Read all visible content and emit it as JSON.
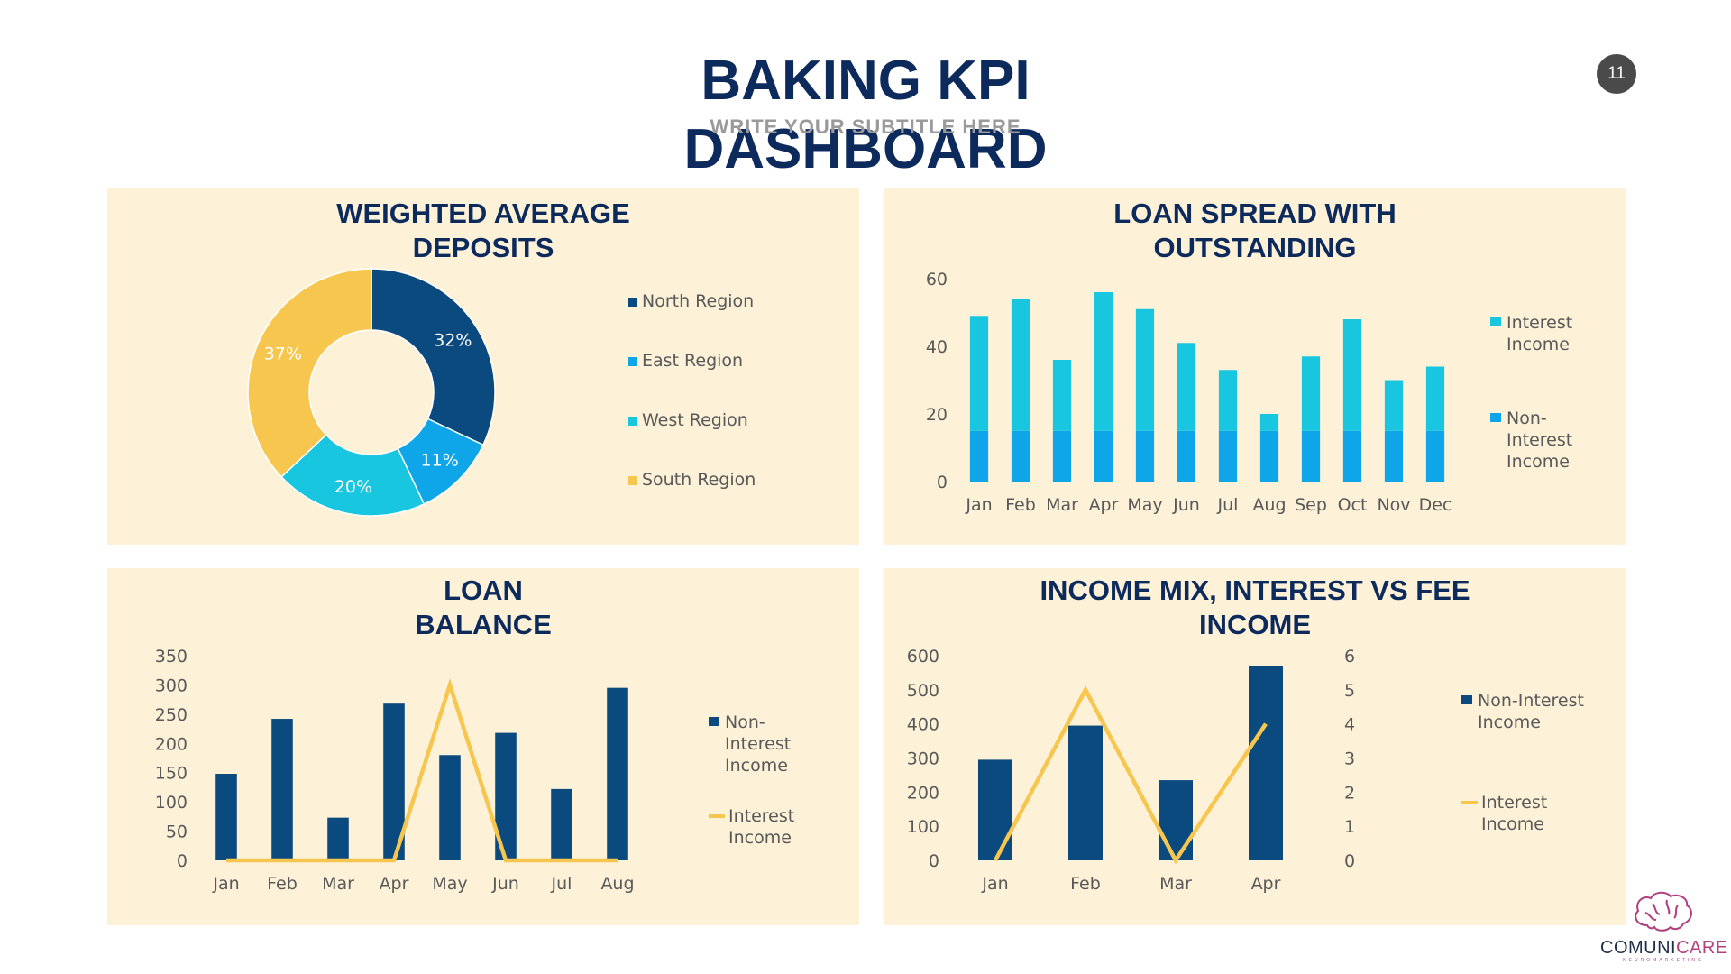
{
  "header": {
    "title_line1": "BAKING KPI",
    "title_line2": "DASHBOARD",
    "subtitle": "WRITE YOUR SUBTITLE HERE",
    "page_number": "11"
  },
  "logo": {
    "word_part1": "COMUNI",
    "word_part2": "CARE",
    "tagline": "NEUROMARKETING",
    "icon": "brain-icon"
  },
  "colors": {
    "navy": "#0d2a5c",
    "panel_bg": "#fdf1d8",
    "dark_blue": "#0b4a7e",
    "blue": "#0ea5e9",
    "cyan": "#19c6df",
    "yellow": "#f7c64e"
  },
  "chart_data": [
    {
      "id": "deposits",
      "type": "pie",
      "title_lines": [
        "WEIGHTED AVERAGE",
        "DEPOSITS"
      ],
      "donut": true,
      "labels": [
        "North Region",
        "East Region",
        "West Region",
        "South Region"
      ],
      "values": [
        32,
        11,
        20,
        37
      ],
      "value_labels": [
        "32%",
        "11%",
        "20%",
        "37%"
      ],
      "colors": [
        "#0b4a7e",
        "#0ea5e9",
        "#19c6df",
        "#f7c64e"
      ],
      "legend": "right"
    },
    {
      "id": "loan_spread",
      "type": "bar",
      "stacked": true,
      "title_lines": [
        "LOAN SPREAD WITH",
        "OUTSTANDING"
      ],
      "categories": [
        "Jan",
        "Feb",
        "Mar",
        "Apr",
        "May",
        "Jun",
        "Jul",
        "Aug",
        "Sep",
        "Oct",
        "Nov",
        "Dec"
      ],
      "series": [
        {
          "name": "Non-Interest Income",
          "legend_lines": [
            "Non-",
            "Interest",
            "Income"
          ],
          "color": "#0ea5e9",
          "values": [
            15,
            15,
            15,
            15,
            15,
            15,
            15,
            15,
            15,
            15,
            15,
            15
          ]
        },
        {
          "name": "Interest Income",
          "legend_lines": [
            "Interest",
            "Income"
          ],
          "color": "#19c6df",
          "values": [
            34,
            39,
            21,
            41,
            36,
            26,
            18,
            5,
            22,
            33,
            15,
            19
          ]
        }
      ],
      "ylim": [
        0,
        60
      ],
      "yticks": [
        "0",
        "20",
        "40",
        "60"
      ],
      "legend": "right"
    },
    {
      "id": "loan_balance",
      "type": "bar",
      "title_lines": [
        "LOAN",
        "BALANCE"
      ],
      "categories": [
        "Jan",
        "Feb",
        "Mar",
        "Apr",
        "May",
        "Jun",
        "Jul",
        "Aug"
      ],
      "series": [
        {
          "name": "Non-Interest Income",
          "kind": "bar",
          "legend_lines": [
            "Non-",
            "Interest",
            "Income"
          ],
          "color": "#0b4a7e",
          "values": [
            148,
            242,
            73,
            268,
            180,
            218,
            122,
            295
          ]
        },
        {
          "name": "Interest Income",
          "kind": "line",
          "legend_lines": [
            "Interest",
            "Income"
          ],
          "color": "#f7c64e",
          "values": [
            0,
            0,
            0,
            0,
            300,
            0,
            0,
            0
          ]
        }
      ],
      "ylim": [
        0,
        350
      ],
      "yticks": [
        "0",
        "50",
        "100",
        "150",
        "200",
        "250",
        "300",
        "350"
      ],
      "legend": "right"
    },
    {
      "id": "income_mix",
      "type": "bar",
      "title_lines": [
        "INCOME MIX, INTEREST VS FEE",
        "INCOME"
      ],
      "categories": [
        "Jan",
        "Feb",
        "Mar",
        "Apr"
      ],
      "series": [
        {
          "name": "Non-Interest Income",
          "kind": "bar",
          "axis": "left",
          "legend_lines": [
            "Non-Interest",
            "Income"
          ],
          "color": "#0b4a7e",
          "values": [
            295,
            395,
            235,
            570
          ]
        },
        {
          "name": "Interest Income",
          "kind": "line",
          "axis": "right",
          "legend_lines": [
            "Interest",
            "Income"
          ],
          "color": "#f7c64e",
          "values": [
            0,
            5,
            0,
            4
          ]
        }
      ],
      "ylim": [
        0,
        600
      ],
      "yticks": [
        "0",
        "100",
        "200",
        "300",
        "400",
        "500",
        "600"
      ],
      "y2lim": [
        0,
        6
      ],
      "y2ticks": [
        "0",
        "1",
        "2",
        "3",
        "4",
        "5",
        "6"
      ],
      "legend": "right"
    }
  ]
}
